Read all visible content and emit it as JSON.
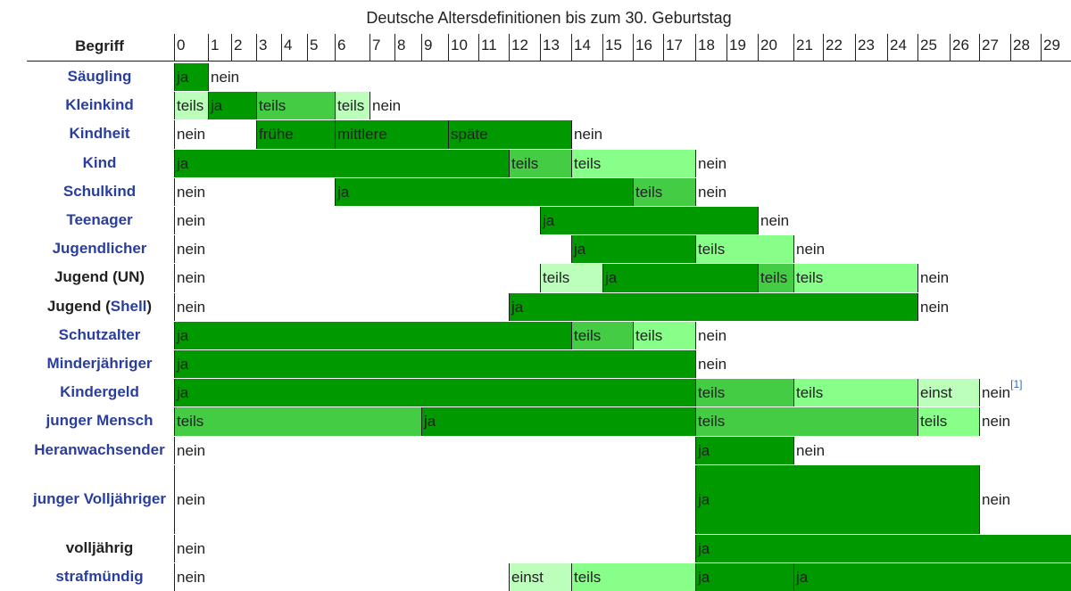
{
  "title": "Deutsche Altersdefinitionen bis zum 30. Geburtstag",
  "header_term": "Begriff",
  "colors": {
    "ja": "#009900",
    "mid": "#44cc44",
    "light": "#88ff88",
    "pale": "#bbffbb",
    "nein": "#ffffff"
  },
  "chart_data": {
    "type": "table",
    "title": "Deutsche Altersdefinitionen bis zum 30. Geburtstag",
    "x_label": "Begriff",
    "years": [
      "0",
      "1",
      "2",
      "3",
      "4",
      "5",
      "6",
      "7",
      "8",
      "9",
      "10",
      "11",
      "12",
      "13",
      "14",
      "15",
      "16",
      "17",
      "18",
      "19",
      "20",
      "21",
      "22",
      "23",
      "24",
      "25",
      "26",
      "27",
      "28",
      "29"
    ],
    "rows": [
      {
        "term": "Säugling",
        "segments": [
          {
            "from": 0,
            "to": 1,
            "label": "ja",
            "color": "ja"
          },
          {
            "from": 1,
            "to": 30,
            "label": "nein",
            "color": "nein"
          }
        ]
      },
      {
        "term": "Kleinkind",
        "segments": [
          {
            "from": 0,
            "to": 1,
            "label": "teils",
            "color": "pale"
          },
          {
            "from": 1,
            "to": 3,
            "label": "ja",
            "color": "ja"
          },
          {
            "from": 3,
            "to": 6,
            "label": "teils",
            "color": "mid"
          },
          {
            "from": 6,
            "to": 7,
            "label": "teils",
            "color": "pale"
          },
          {
            "from": 7,
            "to": 30,
            "label": "nein",
            "color": "nein"
          }
        ]
      },
      {
        "term": "Kindheit",
        "segments": [
          {
            "from": 0,
            "to": 3,
            "label": "nein",
            "color": "nein"
          },
          {
            "from": 3,
            "to": 6,
            "label": "frühe",
            "color": "ja"
          },
          {
            "from": 6,
            "to": 10,
            "label": "mittlere",
            "color": "ja"
          },
          {
            "from": 10,
            "to": 14,
            "label": "späte",
            "color": "ja"
          },
          {
            "from": 14,
            "to": 30,
            "label": "nein",
            "color": "nein"
          }
        ]
      },
      {
        "term": "Kind",
        "segments": [
          {
            "from": 0,
            "to": 12,
            "label": "ja",
            "color": "ja"
          },
          {
            "from": 12,
            "to": 14,
            "label": "teils",
            "color": "mid"
          },
          {
            "from": 14,
            "to": 18,
            "label": "teils",
            "color": "light"
          },
          {
            "from": 18,
            "to": 30,
            "label": "nein",
            "color": "nein"
          }
        ]
      },
      {
        "term": "Schulkind",
        "segments": [
          {
            "from": 0,
            "to": 6,
            "label": "nein",
            "color": "nein"
          },
          {
            "from": 6,
            "to": 16,
            "label": "ja",
            "color": "ja"
          },
          {
            "from": 16,
            "to": 18,
            "label": "teils",
            "color": "mid"
          },
          {
            "from": 18,
            "to": 30,
            "label": "nein",
            "color": "nein"
          }
        ]
      },
      {
        "term": "Teenager",
        "segments": [
          {
            "from": 0,
            "to": 13,
            "label": "nein",
            "color": "nein"
          },
          {
            "from": 13,
            "to": 20,
            "label": "ja",
            "color": "ja"
          },
          {
            "from": 20,
            "to": 30,
            "label": "nein",
            "color": "nein"
          }
        ]
      },
      {
        "term": "Jugendlicher",
        "segments": [
          {
            "from": 0,
            "to": 14,
            "label": "nein",
            "color": "nein"
          },
          {
            "from": 14,
            "to": 18,
            "label": "ja",
            "color": "ja"
          },
          {
            "from": 18,
            "to": 21,
            "label": "teils",
            "color": "light"
          },
          {
            "from": 21,
            "to": 30,
            "label": "nein",
            "color": "nein"
          }
        ]
      },
      {
        "term": "Jugend (UN)",
        "dark": true,
        "segments": [
          {
            "from": 0,
            "to": 13,
            "label": "nein",
            "color": "nein"
          },
          {
            "from": 13,
            "to": 15,
            "label": "teils",
            "color": "pale"
          },
          {
            "from": 15,
            "to": 20,
            "label": "ja",
            "color": "ja"
          },
          {
            "from": 20,
            "to": 21,
            "label": "teils",
            "color": "mid"
          },
          {
            "from": 21,
            "to": 25,
            "label": "teils",
            "color": "light"
          },
          {
            "from": 25,
            "to": 30,
            "label": "nein",
            "color": "nein"
          }
        ]
      },
      {
        "term": "Jugend (Shell)",
        "dark": true,
        "link": "Shell",
        "segments": [
          {
            "from": 0,
            "to": 12,
            "label": "nein",
            "color": "nein"
          },
          {
            "from": 12,
            "to": 25,
            "label": "ja",
            "color": "ja"
          },
          {
            "from": 25,
            "to": 30,
            "label": "nein",
            "color": "nein"
          }
        ]
      },
      {
        "term": "Schutzalter",
        "segments": [
          {
            "from": 0,
            "to": 14,
            "label": "ja",
            "color": "ja"
          },
          {
            "from": 14,
            "to": 16,
            "label": "teils",
            "color": "mid"
          },
          {
            "from": 16,
            "to": 18,
            "label": "teils",
            "color": "light"
          },
          {
            "from": 18,
            "to": 30,
            "label": "nein",
            "color": "nein"
          }
        ]
      },
      {
        "term": "Minderjähriger",
        "segments": [
          {
            "from": 0,
            "to": 18,
            "label": "ja",
            "color": "ja"
          },
          {
            "from": 18,
            "to": 30,
            "label": "nein",
            "color": "nein"
          }
        ]
      },
      {
        "term": "Kindergeld",
        "segments": [
          {
            "from": 0,
            "to": 18,
            "label": "ja",
            "color": "ja"
          },
          {
            "from": 18,
            "to": 21,
            "label": "teils",
            "color": "mid"
          },
          {
            "from": 21,
            "to": 25,
            "label": "teils",
            "color": "light"
          },
          {
            "from": 25,
            "to": 27,
            "label": "einst",
            "color": "pale"
          },
          {
            "from": 27,
            "to": 30,
            "label": "nein",
            "color": "nein",
            "ref": "[1]"
          }
        ]
      },
      {
        "term": "junger Mensch",
        "segments": [
          {
            "from": 0,
            "to": 9,
            "label": "teils",
            "color": "mid"
          },
          {
            "from": 9,
            "to": 18,
            "label": "ja",
            "color": "ja"
          },
          {
            "from": 18,
            "to": 25,
            "label": "teils",
            "color": "mid"
          },
          {
            "from": 25,
            "to": 27,
            "label": "teils",
            "color": "light"
          },
          {
            "from": 27,
            "to": 30,
            "label": "nein",
            "color": "nein"
          }
        ]
      },
      {
        "term": "Heranwachsender",
        "segments": [
          {
            "from": 0,
            "to": 18,
            "label": "nein",
            "color": "nein"
          },
          {
            "from": 18,
            "to": 21,
            "label": "ja",
            "color": "ja"
          },
          {
            "from": 21,
            "to": 30,
            "label": "nein",
            "color": "nein"
          }
        ]
      },
      {
        "term": "junger Volljähriger",
        "tall": true,
        "segments": [
          {
            "from": 0,
            "to": 18,
            "label": "nein",
            "color": "nein"
          },
          {
            "from": 18,
            "to": 27,
            "label": "ja",
            "color": "ja"
          },
          {
            "from": 27,
            "to": 30,
            "label": "nein",
            "color": "nein"
          }
        ]
      },
      {
        "term": "volljährig",
        "dark": true,
        "segments": [
          {
            "from": 0,
            "to": 18,
            "label": "nein",
            "color": "nein"
          },
          {
            "from": 18,
            "to": 30,
            "label": "ja",
            "color": "ja"
          }
        ]
      },
      {
        "term": "strafmündig",
        "segments": [
          {
            "from": 0,
            "to": 12,
            "label": "nein",
            "color": "nein"
          },
          {
            "from": 12,
            "to": 14,
            "label": "einst",
            "color": "pale"
          },
          {
            "from": 14,
            "to": 18,
            "label": "teils",
            "color": "light"
          },
          {
            "from": 18,
            "to": 21,
            "label": "ja",
            "color": "ja"
          },
          {
            "from": 21,
            "to": 30,
            "label": "ja",
            "color": "ja"
          }
        ]
      }
    ]
  }
}
